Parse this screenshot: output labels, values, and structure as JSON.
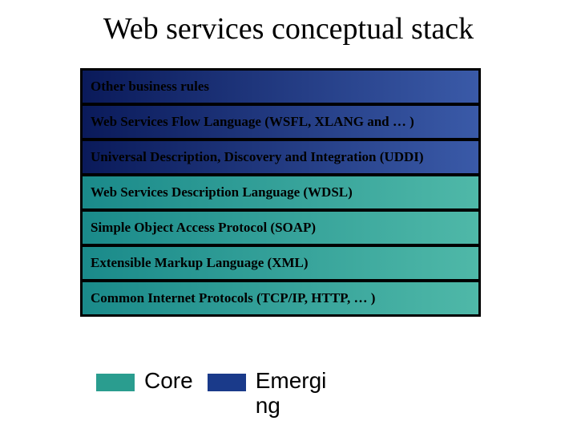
{
  "title": "Web services conceptual stack",
  "title_fontsize": 38,
  "title_color": "#000000",
  "background_color": "#ffffff",
  "stack": {
    "container_bg": "#000000",
    "layer_border": "#000000",
    "layer_fontsize": 17,
    "layer_fontweight": "bold",
    "layers": [
      {
        "label": "Other business rules",
        "category": "emerging"
      },
      {
        "label": "Web Services Flow Language (WSFL, XLANG and … )",
        "category": "emerging"
      },
      {
        "label": "Universal Description, Discovery and Integration (UDDI)",
        "category": "emerging"
      },
      {
        "label": "Web Services Description Language (WDSL)",
        "category": "core"
      },
      {
        "label": "Simple Object Access Protocol (SOAP)",
        "category": "core"
      },
      {
        "label": "Extensible Markup Language (XML)",
        "category": "core"
      },
      {
        "label": "Common Internet Protocols (TCP/IP, HTTP, … )",
        "category": "core"
      }
    ]
  },
  "categories": {
    "core": {
      "label": "Core",
      "gradient_from": "#1a8a8a",
      "gradient_to": "#4fb8a8",
      "swatch_color": "#2a9d8f"
    },
    "emerging": {
      "label": "Emergi\nng",
      "gradient_from": "#0a1a5a",
      "gradient_to": "#3a5aa8",
      "swatch_color": "#1a3a8a"
    }
  },
  "legend": {
    "fontsize": 28,
    "font_family": "Arial",
    "swatch_width": 48,
    "swatch_height": 22,
    "order": [
      "core",
      "emerging"
    ]
  }
}
